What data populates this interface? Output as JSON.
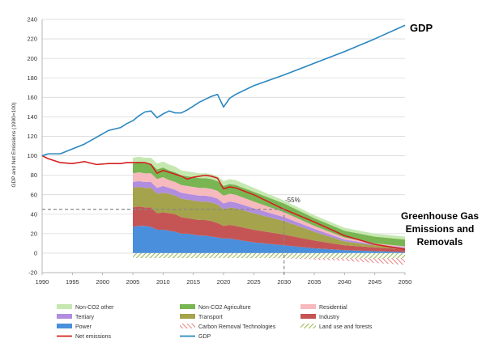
{
  "chart_data": {
    "type": "area",
    "title": "",
    "xlabel": "",
    "ylabel": "GDP and Net Emissions (1990=100)",
    "xlim": [
      1990,
      2050
    ],
    "ylim": [
      -20,
      240
    ],
    "xticks": [
      1990,
      1995,
      2000,
      2005,
      2010,
      2015,
      2020,
      2025,
      2030,
      2035,
      2040,
      2045,
      2050
    ],
    "yticks": [
      -20,
      0,
      20,
      40,
      60,
      80,
      100,
      120,
      140,
      160,
      180,
      200,
      220,
      240
    ],
    "grid": "horizontal",
    "legend": "bottom",
    "colors": {
      "Non-CO2 other": "#c5e8b0",
      "Non-CO2 Agriculture": "#79b552",
      "Residential": "#f6b9bd",
      "Tertiary": "#b18de0",
      "Transport": "#a5a34b",
      "Industry": "#c55555",
      "Power": "#4a8fdc",
      "Carbon Removal Technologies": "#e06060",
      "Land use and forests": "#9bba59",
      "Net emissions": "#d42020",
      "GDP": "#2a87c0",
      "reference": "#888888"
    },
    "stack_x": [
      2005,
      2006,
      2007,
      2008,
      2009,
      2010,
      2011,
      2012,
      2013,
      2014,
      2015,
      2016,
      2017,
      2018,
      2019,
      2020,
      2021,
      2022,
      2025,
      2030,
      2035,
      2040,
      2045,
      2050
    ],
    "positive_series": [
      {
        "name": "Power",
        "values": [
          27,
          28,
          28,
          27,
          24,
          24,
          23,
          22,
          20,
          20,
          19,
          18,
          18,
          17,
          16,
          15,
          15,
          14,
          11,
          8,
          5,
          3,
          2,
          1
        ]
      },
      {
        "name": "Industry",
        "values": [
          20,
          20,
          19,
          20,
          17,
          18,
          18,
          18,
          17,
          16,
          16,
          16,
          16,
          16,
          15,
          13,
          14,
          14,
          13,
          11,
          8,
          5,
          4,
          3
        ]
      },
      {
        "name": "Transport",
        "values": [
          20,
          20,
          20,
          20,
          20,
          20,
          20,
          19,
          19,
          19,
          19,
          19,
          19,
          19,
          19,
          17,
          18,
          18,
          17,
          14,
          9,
          4,
          2,
          1
        ]
      },
      {
        "name": "Tertiary",
        "values": [
          6,
          6,
          6,
          6,
          6,
          7,
          6,
          6,
          6,
          6,
          6,
          6,
          6,
          6,
          6,
          6,
          6,
          6,
          5,
          4,
          3,
          2,
          1,
          1
        ]
      },
      {
        "name": "Residential",
        "values": [
          9,
          9,
          9,
          9,
          9,
          9,
          8,
          8,
          8,
          8,
          8,
          8,
          8,
          8,
          8,
          8,
          8,
          8,
          7,
          5,
          3,
          2,
          1,
          1
        ]
      },
      {
        "name": "Non-CO2 Agriculture",
        "values": [
          10,
          10,
          10,
          10,
          10,
          10,
          10,
          10,
          10,
          10,
          10,
          10,
          10,
          10,
          10,
          10,
          10,
          10,
          10,
          9,
          8,
          7,
          7,
          7
        ]
      },
      {
        "name": "Non-CO2 other",
        "values": [
          6,
          6,
          6,
          6,
          6,
          6,
          6,
          6,
          5,
          5,
          5,
          5,
          5,
          5,
          5,
          5,
          5,
          5,
          4,
          3,
          3,
          3,
          3,
          3
        ]
      }
    ],
    "negative_series": [
      {
        "name": "Land use and forests",
        "values": [
          -5,
          -5,
          -5,
          -5,
          -5,
          -5,
          -5,
          -5,
          -5,
          -5,
          -5,
          -5,
          -5,
          -5,
          -5,
          -5,
          -5,
          -5,
          -5,
          -5,
          -5,
          -5,
          -5,
          -5
        ]
      },
      {
        "name": "Carbon Removal Technologies",
        "values": [
          0,
          0,
          0,
          0,
          0,
          0,
          0,
          0,
          0,
          0,
          0,
          0,
          0,
          0,
          0,
          0,
          0,
          0,
          0,
          -0.3,
          -1.5,
          -3,
          -5,
          -7
        ]
      }
    ],
    "gdp": {
      "name": "GDP",
      "x": [
        1990,
        1991,
        1993,
        1995,
        1997,
        1999,
        2001,
        2003,
        2004,
        2005,
        2006,
        2007,
        2008,
        2009,
        2010,
        2011,
        2012,
        2013,
        2014,
        2015,
        2016,
        2017,
        2018,
        2019,
        2020,
        2021,
        2022,
        2025,
        2030,
        2035,
        2040,
        2045,
        2050
      ],
      "values": [
        100,
        102,
        102,
        107,
        112,
        119,
        126,
        129,
        133,
        136,
        141,
        145,
        146,
        139,
        143,
        146,
        144,
        144,
        147,
        151,
        155,
        158,
        161,
        163,
        150,
        159,
        163,
        172,
        183,
        195,
        207,
        220,
        234
      ]
    },
    "net_emissions": {
      "name": "Net emissions",
      "x": [
        1990,
        1991,
        1993,
        1995,
        1997,
        1999,
        2001,
        2003,
        2004,
        2005,
        2006,
        2007,
        2008,
        2009,
        2010,
        2011,
        2012,
        2013,
        2014,
        2015,
        2016,
        2017,
        2018,
        2019,
        2020,
        2021,
        2022,
        2025,
        2030,
        2035,
        2040,
        2045,
        2050
      ],
      "values": [
        100,
        97,
        93,
        92,
        94,
        91,
        92,
        92,
        93,
        93,
        93,
        93,
        91,
        82,
        85,
        83,
        81,
        79,
        76,
        78,
        79,
        80,
        79,
        77,
        66,
        68,
        67,
        60,
        45,
        32,
        18,
        9,
        4
      ]
    },
    "reference": {
      "x": 2030,
      "y": 45
    },
    "annotations": {
      "gdp": "GDP",
      "ghg": [
        "Greenhouse Gas",
        "Emissions and",
        "Removals"
      ],
      "pct": "-55%"
    },
    "legend_items": [
      {
        "name": "Non-CO2 other",
        "kind": "fill"
      },
      {
        "name": "Non-CO2 Agriculture",
        "kind": "fill"
      },
      {
        "name": "Residential",
        "kind": "fill"
      },
      {
        "name": "Tertiary",
        "kind": "fill"
      },
      {
        "name": "Transport",
        "kind": "fill"
      },
      {
        "name": "Industry",
        "kind": "fill"
      },
      {
        "name": "Power",
        "kind": "fill"
      },
      {
        "name": "Carbon Removal Technologies",
        "kind": "hatch-red"
      },
      {
        "name": "Land use and forests",
        "kind": "hatch-green"
      },
      {
        "name": "Net emissions",
        "kind": "line"
      },
      {
        "name": "GDP",
        "kind": "line"
      }
    ]
  }
}
